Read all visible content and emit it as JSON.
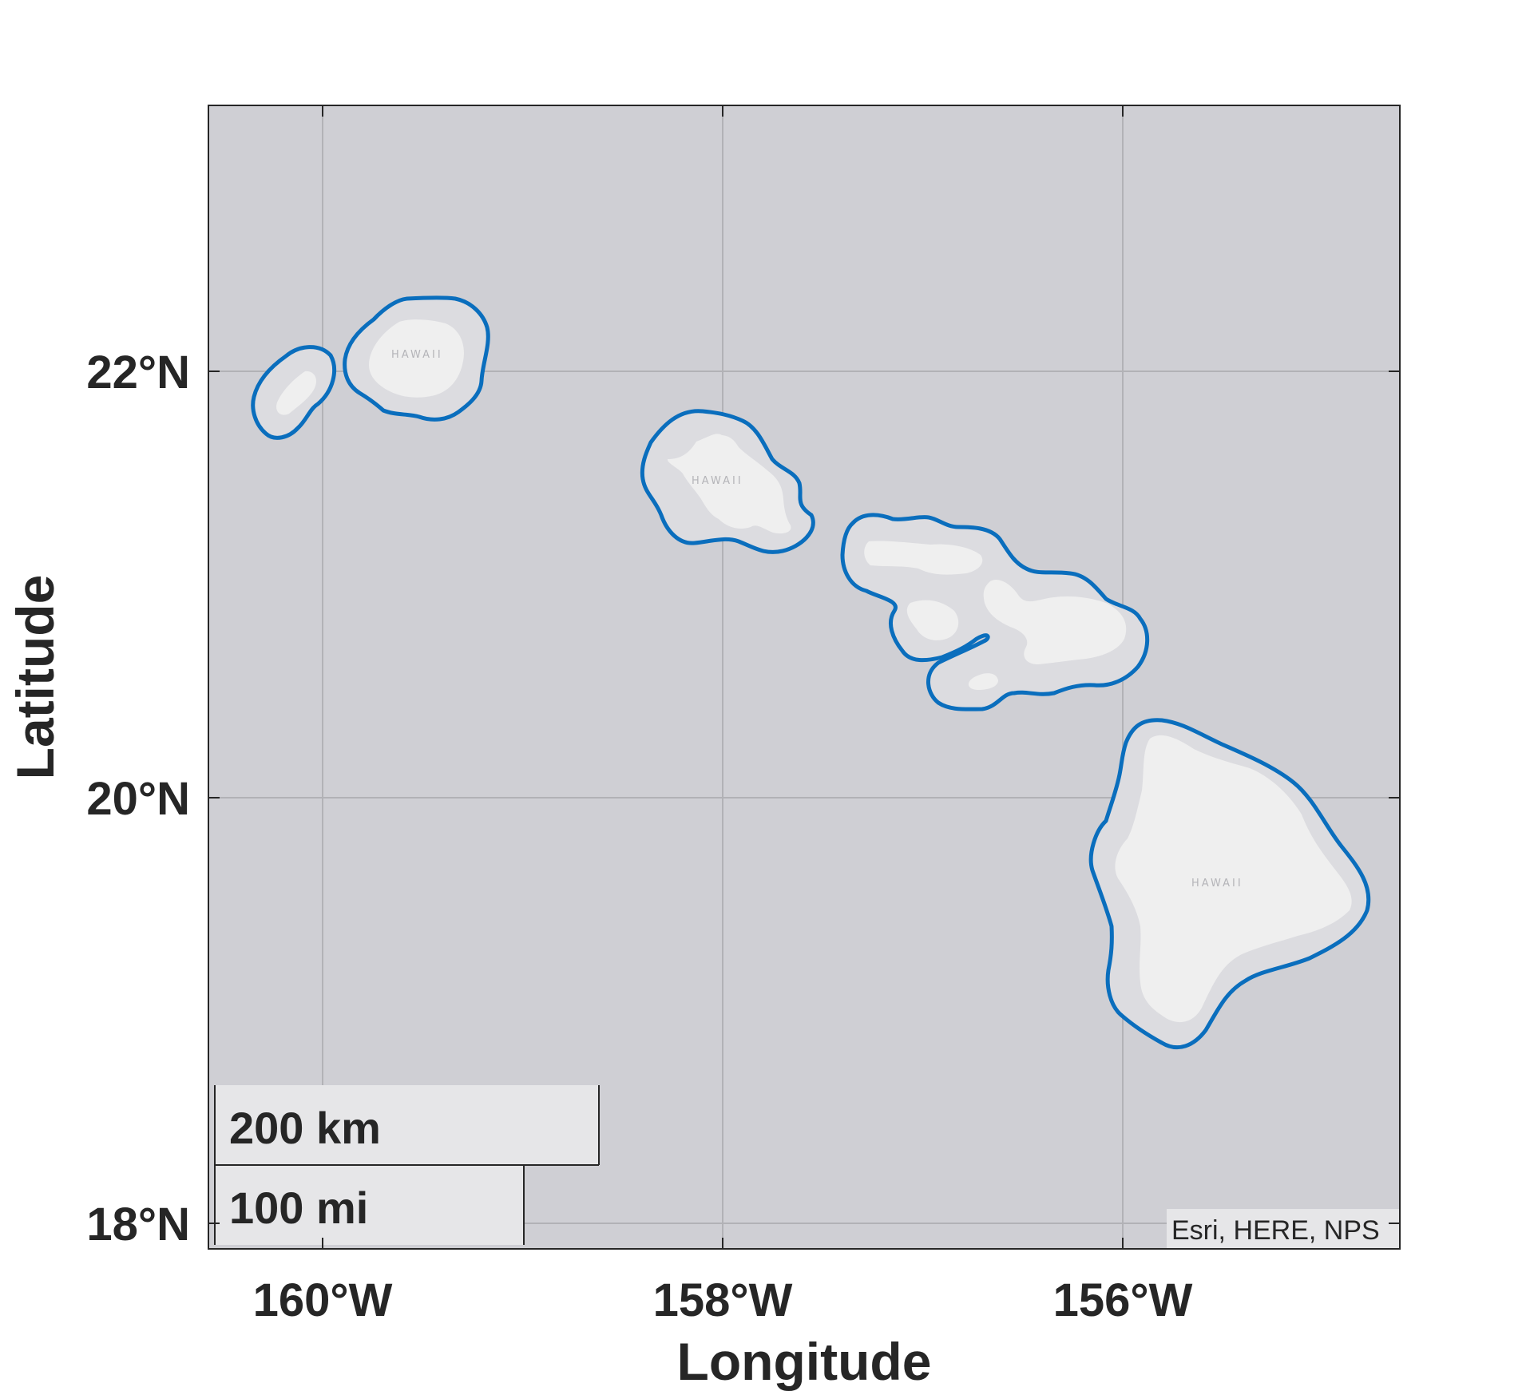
{
  "map": {
    "xlabel": "Longitude",
    "ylabel": "Latitude",
    "lat_ticks": [
      "22°N",
      "20°N",
      "18°N"
    ],
    "lon_ticks": [
      "160°W",
      "158°W",
      "156°W"
    ],
    "lat_values": [
      22,
      20,
      18
    ],
    "lon_values": [
      -160,
      -158,
      -156
    ],
    "extent": {
      "lon": [
        -160.57,
        -154.58
      ],
      "lat": [
        17.85,
        23.23
      ]
    },
    "grid": true,
    "basemap_attribution": "Esri, HERE, NPS",
    "island_labels": [
      "HAWAII",
      "HAWAII",
      "HAWAII"
    ],
    "scale_bar": {
      "km_label": "200 km",
      "mi_label": "100 mi"
    },
    "colors": {
      "ocean": "#cfcfd4",
      "land": "#efefef",
      "shallow": "#dcdce0",
      "buffer_outline": "#0a6ebd",
      "gridline": "#b2b2b6",
      "frame": "#262626",
      "text": "#262626",
      "scale_box": "#e6e6e8"
    }
  }
}
